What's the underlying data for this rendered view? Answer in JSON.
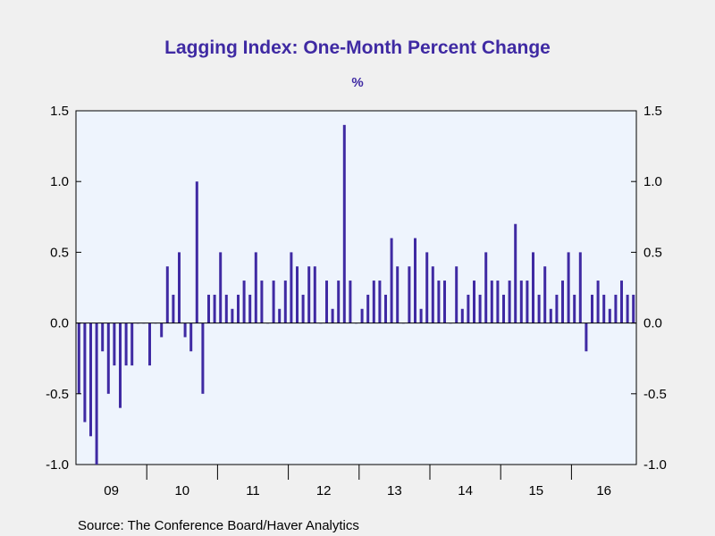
{
  "chart_data": {
    "type": "bar",
    "title": "Lagging Index: One-Month Percent Change",
    "unit_label": "%",
    "source": "Source:  The Conference Board/Haver Analytics",
    "ylim": [
      -1.0,
      1.5
    ],
    "yticks": [
      -1.0,
      -0.5,
      0.0,
      0.5,
      1.0,
      1.5
    ],
    "ytick_labels": [
      "-1.0",
      "-0.5",
      "0.0",
      "0.5",
      "1.0",
      "1.5"
    ],
    "x_start": "2009-01",
    "year_labels": [
      "09",
      "10",
      "11",
      "12",
      "13",
      "14",
      "15",
      "16"
    ],
    "grid": false,
    "bar_color": "#3f2aa3",
    "plot_background": "#eef4fd",
    "values": [
      -0.5,
      -0.7,
      -0.8,
      -1.0,
      -0.2,
      -0.5,
      -0.3,
      -0.6,
      -0.3,
      -0.3,
      0.0,
      0.0,
      -0.3,
      0.0,
      -0.1,
      0.4,
      0.2,
      0.5,
      -0.1,
      -0.2,
      1.0,
      -0.5,
      0.2,
      0.2,
      0.5,
      0.2,
      0.1,
      0.2,
      0.3,
      0.2,
      0.5,
      0.3,
      0.0,
      0.3,
      0.1,
      0.3,
      0.5,
      0.4,
      0.2,
      0.4,
      0.4,
      0.0,
      0.3,
      0.1,
      0.3,
      1.4,
      0.3,
      0.0,
      0.1,
      0.2,
      0.3,
      0.3,
      0.2,
      0.6,
      0.4,
      0.0,
      0.4,
      0.6,
      0.1,
      0.5,
      0.4,
      0.3,
      0.3,
      0.0,
      0.4,
      0.1,
      0.2,
      0.3,
      0.2,
      0.5,
      0.3,
      0.3,
      0.2,
      0.3,
      0.7,
      0.3,
      0.3,
      0.5,
      0.2,
      0.4,
      0.1,
      0.2,
      0.3,
      0.5,
      0.2,
      0.5,
      -0.2,
      0.2,
      0.3,
      0.2,
      0.1,
      0.2,
      0.3,
      0.2,
      0.2
    ]
  }
}
